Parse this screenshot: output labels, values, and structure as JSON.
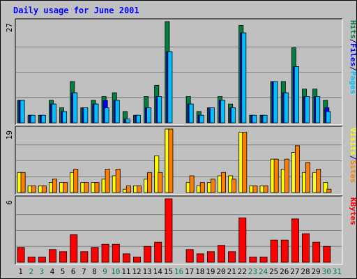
{
  "title": "Daily usage for June 2001",
  "chart_data": {
    "type": "bar",
    "title": "Daily usage for June 2001",
    "x": [
      1,
      2,
      3,
      4,
      5,
      6,
      7,
      8,
      9,
      10,
      11,
      12,
      13,
      14,
      15,
      16,
      17,
      18,
      19,
      20,
      21,
      22,
      23,
      24,
      25,
      26,
      27,
      28,
      29,
      30,
      31
    ],
    "weekend_days": [
      2,
      3,
      9,
      10,
      16,
      23,
      24,
      30,
      31
    ],
    "panels": [
      {
        "name": "hits-files-pages",
        "ymax_label": "27",
        "ymax": 27,
        "legend": [
          {
            "text": "Pages",
            "color": "#00c0ff"
          },
          {
            "text": "/",
            "color": "#000080"
          },
          {
            "text": "Files",
            "color": "#0000ff"
          },
          {
            "text": "/",
            "color": "#000080"
          },
          {
            "text": "Hits",
            "color": "#008040"
          }
        ],
        "series": [
          {
            "name": "Hits",
            "color": "#008040",
            "values": [
              6,
              2,
              2,
              6,
              4,
              11,
              4,
              6,
              7,
              8,
              3,
              2,
              7,
              10,
              27,
              0,
              7,
              3,
              4,
              7,
              5,
              26,
              2,
              2,
              11,
              11,
              20,
              9,
              9,
              6,
              0
            ]
          },
          {
            "name": "Files",
            "color": "#0000ff",
            "values": [
              6,
              2,
              2,
              5,
              3,
              8,
              4,
              5,
              6,
              6,
              1,
              2,
              4,
              7,
              19,
              0,
              5,
              2,
              4,
              6,
              4,
              24,
              2,
              2,
              11,
              8,
              15,
              7,
              7,
              4,
              0
            ]
          },
          {
            "name": "Pages",
            "color": "#00c0ff",
            "values": [
              6,
              2,
              2,
              5,
              3,
              8,
              4,
              5,
              4,
              6,
              1,
              2,
              4,
              7,
              19,
              0,
              5,
              2,
              4,
              6,
              4,
              24,
              2,
              2,
              11,
              8,
              15,
              7,
              7,
              3,
              0
            ]
          }
        ]
      },
      {
        "name": "visits-sites",
        "ymax_label": "19",
        "ymax": 19,
        "legend": [
          {
            "text": "Sites",
            "color": "#ff8000"
          },
          {
            "text": "/",
            "color": "#000080"
          },
          {
            "text": "Visits",
            "color": "#ffff00"
          }
        ],
        "series": [
          {
            "name": "Visits",
            "color": "#ffff00",
            "values": [
              6,
              2,
              2,
              3,
              3,
              6,
              3,
              3,
              4,
              5,
              1,
              2,
              4,
              11,
              19,
              0,
              3,
              2,
              3,
              5,
              5,
              18,
              2,
              2,
              10,
              7,
              12,
              6,
              6,
              3,
              0
            ]
          },
          {
            "name": "Sites",
            "color": "#ff8000",
            "values": [
              6,
              2,
              2,
              4,
              3,
              7,
              3,
              3,
              7,
              7,
              2,
              2,
              6,
              6,
              19,
              0,
              5,
              3,
              4,
              6,
              4,
              18,
              2,
              2,
              10,
              10,
              14,
              9,
              7,
              1,
              0
            ]
          }
        ]
      },
      {
        "name": "kbytes",
        "ymax_label": "6",
        "ymax": 6,
        "legend": [
          {
            "text": "KBytes",
            "color": "#ff0000"
          }
        ],
        "series": [
          {
            "name": "KBytes",
            "color": "#ff0000",
            "values": [
              1.4,
              0.5,
              0.5,
              1.2,
              1.0,
              2.6,
              1.0,
              1.4,
              1.7,
              1.7,
              0.8,
              0.5,
              1.5,
              1.9,
              6,
              0,
              1.2,
              0.8,
              1.0,
              1.6,
              1.0,
              4.2,
              0.5,
              0.5,
              2.1,
              2.1,
              4.1,
              2.7,
              1.9,
              1.5,
              0
            ]
          }
        ]
      }
    ]
  }
}
